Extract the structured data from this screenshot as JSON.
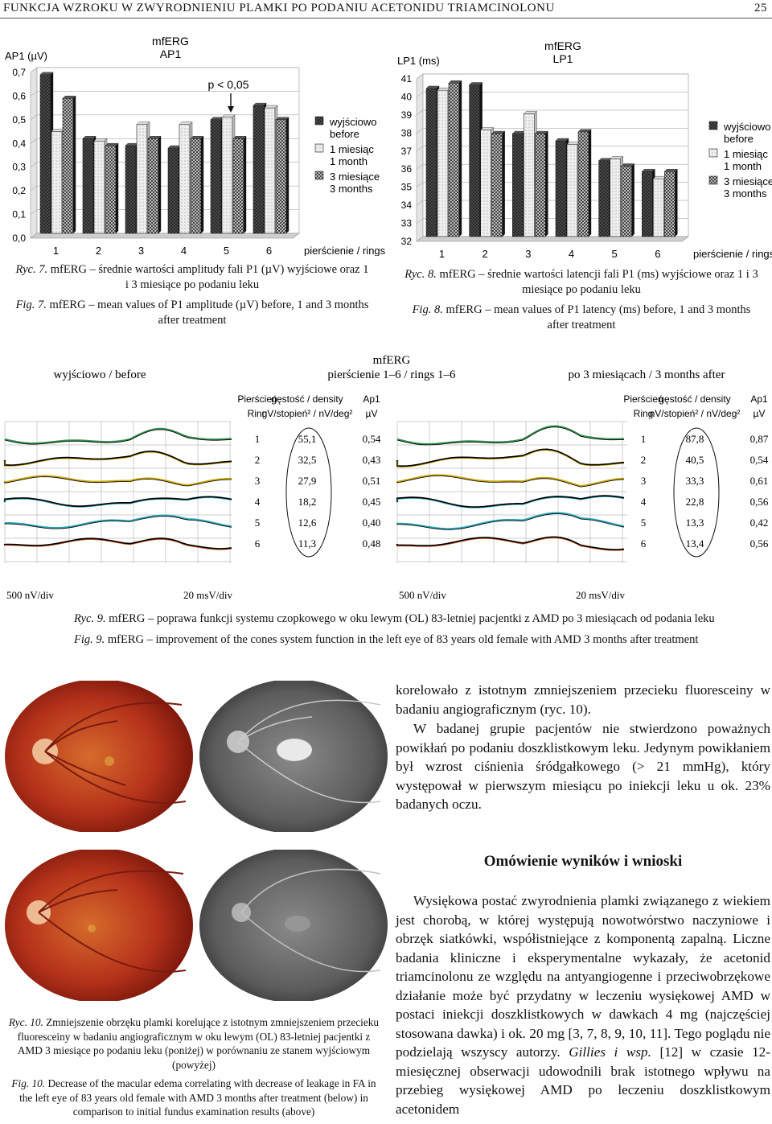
{
  "header": {
    "title": "FUNKCJA WZROKU W ZWYRODNIENIU PLAMKI PO PODANIU ACETONIDU TRIAMCINOLONU",
    "page_number": "25"
  },
  "chart_data": [
    {
      "type": "bar",
      "title": "mfERG AP1",
      "title_line1": "mfERG",
      "title_line2": "AP1",
      "ylabel": "AP1 (µV)",
      "xlabel": "pierścienie / rings",
      "categories": [
        "1",
        "2",
        "3",
        "4",
        "5",
        "6"
      ],
      "ylim": [
        0,
        0.7
      ],
      "yticks": [
        "0,0",
        "0,1",
        "0,2",
        "0,3",
        "0,4",
        "0,5",
        "0,6",
        "0,7"
      ],
      "series": [
        {
          "name": "wyjściowo before",
          "values": [
            0.67,
            0.4,
            0.37,
            0.36,
            0.48,
            0.54
          ]
        },
        {
          "name": "1 miesiąc 1 month",
          "values": [
            0.43,
            0.39,
            0.46,
            0.46,
            0.49,
            0.53
          ]
        },
        {
          "name": "3 miesiące 3 months",
          "values": [
            0.57,
            0.37,
            0.4,
            0.4,
            0.4,
            0.48
          ]
        }
      ],
      "legend": [
        {
          "line1": "wyjściowo",
          "line2": "before"
        },
        {
          "line1": "1 miesiąc",
          "line2": "1 month"
        },
        {
          "line1": "3 miesiące",
          "line2": "3 months"
        }
      ],
      "annotation": "p < 0,05",
      "legend_position": "right"
    },
    {
      "type": "bar",
      "title": "mfERG LP1",
      "title_line1": "mfERG",
      "title_line2": "LP1",
      "ylabel": "LP1 (ms)",
      "xlabel": "pierścienie / rings",
      "categories": [
        "1",
        "2",
        "3",
        "4",
        "5",
        "6"
      ],
      "ylim": [
        32,
        41
      ],
      "yticks": [
        "32",
        "33",
        "34",
        "35",
        "36",
        "37",
        "38",
        "39",
        "40",
        "41"
      ],
      "series": [
        {
          "name": "wyjściowo before",
          "values": [
            40.2,
            40.4,
            37.7,
            37.3,
            36.2,
            35.6
          ]
        },
        {
          "name": "1 miesiąc 1 month",
          "values": [
            40.1,
            37.9,
            38.8,
            37.1,
            36.3,
            35.2
          ]
        },
        {
          "name": "3 miesiące 3 months",
          "values": [
            40.5,
            37.7,
            37.7,
            37.8,
            35.9,
            35.6
          ]
        }
      ],
      "legend": [
        {
          "line1": "wyjściowo",
          "line2": "before"
        },
        {
          "line1": "1 miesiąc",
          "line2": "1 month"
        },
        {
          "line1": "3 miesiące",
          "line2": "3 months"
        }
      ],
      "legend_position": "right"
    },
    {
      "type": "table",
      "title_line1": "mfERG",
      "title_line2": "pierścienie 1–6 / rings 1–6",
      "panel_left": "wyjściowo / before",
      "panel_right": "po 3 miesiącach / 3 months after",
      "col_ring": [
        "Pierścień",
        "Ring"
      ],
      "col_density": [
        "gęstość / density",
        "nV/stopień² / nV/deg²"
      ],
      "col_ap1": [
        "Ap1",
        "µV"
      ],
      "rings": [
        "1",
        "2",
        "3",
        "4",
        "5",
        "6"
      ],
      "before_density": [
        "55,1",
        "32,5",
        "27,9",
        "18,2",
        "12,6",
        "11,3"
      ],
      "before_ap1": [
        "0,54",
        "0,43",
        "0,51",
        "0,45",
        "0,40",
        "0,48"
      ],
      "after_density": [
        "87,8",
        "40,5",
        "33,3",
        "22,8",
        "13,3",
        "13,4"
      ],
      "after_ap1": [
        "0,87",
        "0,54",
        "0,61",
        "0,56",
        "0,42",
        "0,56"
      ],
      "scale_amp": "500 nV/div",
      "scale_time": "20 msV/div"
    }
  ],
  "captions": {
    "fig7_pl_label": "Ryc. 7.",
    "fig7_pl": "mfERG – średnie wartości amplitudy fali P1 (µV) wyjściowe oraz 1",
    "fig7_pl2": "i 3 miesiące po podaniu leku",
    "fig7_en_label": "Fig. 7.",
    "fig7_en": "mfERG – mean values of P1 amplitude (µV) before, 1 and 3 months",
    "fig7_en2": "after treatment",
    "fig8_pl_label": "Ryc. 8.",
    "fig8_pl": "mfERG – średnie wartości latencji fali P1 (ms) wyjściowe oraz 1 i 3",
    "fig8_pl2": "miesiące po podaniu leku",
    "fig8_en_label": "Fig. 8.",
    "fig8_en": "mfERG – mean values of P1 latency (ms) before, 1 and 3 months",
    "fig8_en2": "after treatment",
    "fig9_pl_label": "Ryc. 9.",
    "fig9_pl": "mfERG – poprawa funkcji systemu czopkowego w oku lewym (OL) 83-letniej pacjentki z AMD po 3 miesiącach od podania leku",
    "fig9_en_label": "Fig. 9.",
    "fig9_en": "mfERG – improvement of the cones system function in the left eye of 83 years old female with AMD 3 months after treatment",
    "fig10_pl_label": "Ryc. 10.",
    "fig10_pl": "Zmniejszenie obrzęku plamki korelujące z istotnym zmniejszeniem przecieku fluoresceiny w badaniu angiograficznym w oku lewym (OL) 83-letniej pacjentki z AMD 3 miesiące po podaniu leku (poniżej) w porównaniu ze stanem wyjściowym (powyżej)",
    "fig10_en_label": "Fig. 10.",
    "fig10_en": "Decrease of the macular edema correlating with decrease of leakage in FA in the left eye of 83 years old female with AMD 3 months after treatment (below) in comparison to initial fundus examination results (above)"
  },
  "body": {
    "para1": "korelowało z istotnym zmniejszeniem przecieku fluoresceiny w badaniu angiograficznym (ryc. 10).",
    "para2": "W badanej grupie pacjentów nie stwierdzono poważnych powikłań po podaniu doszklistkowym leku. Jedynym powikłaniem był wzrost ciśnienia śródgałkowego (> 21 mmHg), który występował w pierwszym miesiącu po iniekcji leku u ok. 23% badanych oczu.",
    "heading": "Omówienie wyników i wnioski",
    "para3_a": "Wysiękowa postać zwyrodnienia plamki związanego z wiekiem jest chorobą, w której występują nowotwórstwo naczyniowe i obrzęk siatkówki, współistniejące z komponentą zapalną. Liczne badania kliniczne i eksperymentalne wykazały, że acetonid triamcinolonu ze względu na antyangiogenne i przeciwobrzękowe działanie może być przydatny w leczeniu wysiękowej AMD w postaci iniekcji doszklistkowych w dawkach 4 mg (najczęściej stosowana dawka) i ok. 20 mg [3, 7, 8, 9, 10, 11]. Tego poglądu nie podzielają wszyscy autorzy. ",
    "para3_it": "Gillies i wsp.",
    "para3_b": " [12] w czasie 12-miesięcznej obserwacji udowodnili brak istotnego wpływu na przebieg wysiękowej AMD po leczeniu doszklistkowym acetonidem"
  },
  "colors": {
    "bar_dark": "#2a2a2a",
    "bar_light": "#eeeeee",
    "retina_red": "#b5321a",
    "angio_gray": "#6f6f6f"
  }
}
